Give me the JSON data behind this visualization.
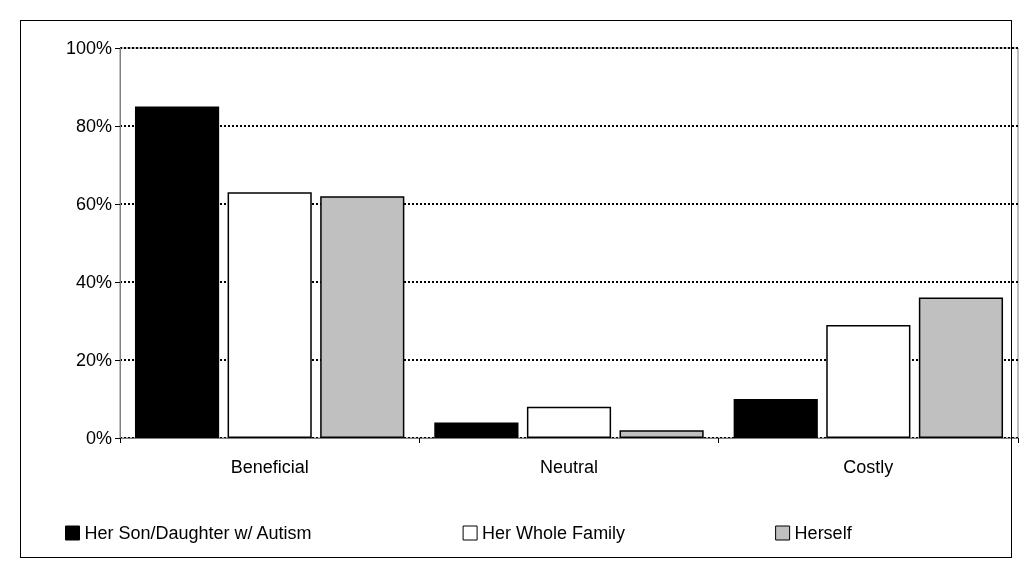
{
  "chart_data": {
    "type": "bar",
    "categories": [
      "Beneficial",
      "Neutral",
      "Costly"
    ],
    "series": [
      {
        "name": "Her Son/Daughter w/ Autism",
        "color": "#000000",
        "values": [
          85,
          4,
          10
        ]
      },
      {
        "name": "Her Whole Family",
        "color": "#ffffff",
        "values": [
          63,
          8,
          29
        ]
      },
      {
        "name": "Herself",
        "color": "#c0c0c0",
        "values": [
          62,
          2,
          36
        ]
      }
    ],
    "ylim": [
      0,
      100
    ],
    "yticks": [
      {
        "value": 0,
        "label": "0%"
      },
      {
        "value": 20,
        "label": "20%"
      },
      {
        "value": 40,
        "label": "40%"
      },
      {
        "value": 60,
        "label": "60%"
      },
      {
        "value": 80,
        "label": "80%"
      },
      {
        "value": 100,
        "label": "100%"
      }
    ],
    "grid": "y",
    "legend": "bottom",
    "line_style": "dotted"
  }
}
